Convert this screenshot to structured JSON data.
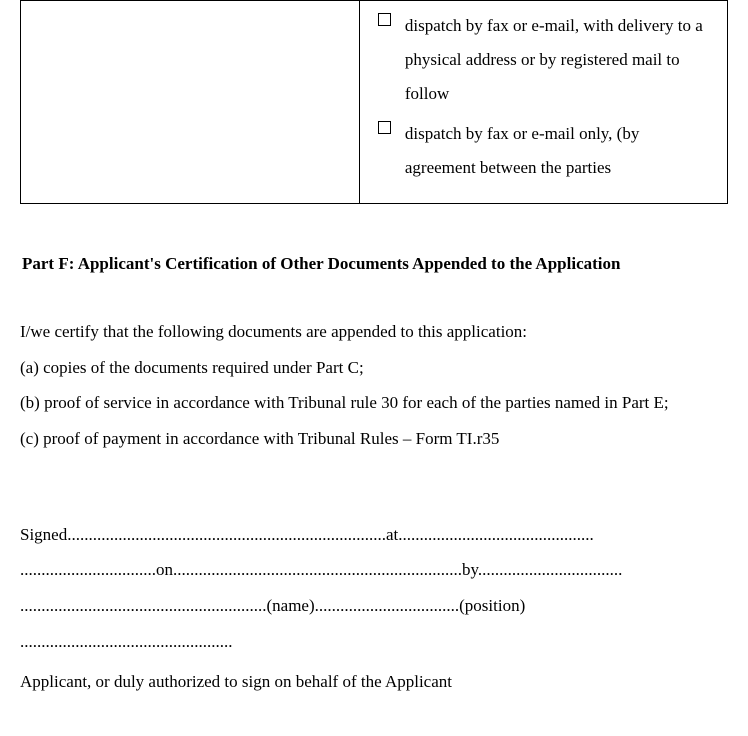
{
  "table": {
    "option1": "dispatch by fax or e-mail, with delivery to a physical address or by registered mail to follow",
    "option2": "dispatch by fax or e-mail only, (by agreement between the parties"
  },
  "partF": {
    "heading": "Part F: Applicant's Certification of Other Documents Appended to the Application",
    "intro": "I/we certify that the following documents are appended to this application:",
    "item_a": "(a) copies of the documents required under Part C;",
    "item_b": "(b) proof of service in accordance with Tribunal rule 30 for each of the parties named in Part E;",
    "item_c": "(c) proof of payment in accordance with Tribunal Rules – Form TI.r35"
  },
  "signature": {
    "line1": "Signed...........................................................................at..............................................",
    "line2": "................................on....................................................................by..................................",
    "line3": "..........................................................(name)..................................(position)",
    "line4": "..................................................",
    "footer": "Applicant, or duly authorized to sign on behalf of the Applicant"
  },
  "colors": {
    "text": "#000000",
    "background": "#ffffff",
    "border": "#000000"
  }
}
